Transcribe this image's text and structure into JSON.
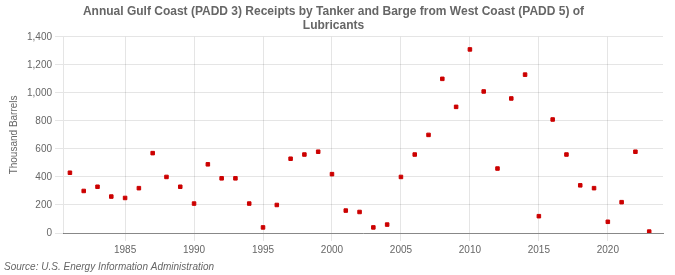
{
  "chart_data": {
    "type": "scatter",
    "title": "Annual Gulf Coast (PADD 3) Receipts by Tanker and Barge from West Coast (PADD 5) of\nLubricants",
    "y_label": "Thousand Barrels",
    "annotations": [
      "Source: U.S. Energy Information Administration"
    ],
    "x": [
      1981,
      1982,
      1983,
      1984,
      1985,
      1986,
      1987,
      1988,
      1989,
      1990,
      1991,
      1992,
      1993,
      1994,
      1995,
      1996,
      1997,
      1998,
      1999,
      2000,
      2001,
      2002,
      2003,
      2004,
      2005,
      2006,
      2007,
      2008,
      2009,
      2010,
      2011,
      2012,
      2013,
      2014,
      2015,
      2016,
      2017,
      2018,
      2019,
      2020,
      2021,
      2022,
      2023
    ],
    "values": [
      430,
      300,
      330,
      260,
      250,
      320,
      570,
      400,
      330,
      210,
      490,
      390,
      390,
      210,
      40,
      200,
      530,
      560,
      580,
      420,
      160,
      150,
      40,
      60,
      400,
      560,
      700,
      1100,
      900,
      1310,
      1010,
      460,
      960,
      1130,
      120,
      810,
      560,
      340,
      320,
      80,
      220,
      580,
      10
    ],
    "color": "#cc0000",
    "marker": "square",
    "xlim": [
      1980.5,
      2024
    ],
    "xticks": [
      1985,
      1990,
      1995,
      2000,
      2005,
      2010,
      2015,
      2020
    ],
    "ylim": [
      0,
      1400
    ],
    "yticks": [
      0,
      200,
      400,
      600,
      800,
      {
        "value": 1000,
        "label": "1,000"
      },
      {
        "value": 1200,
        "label": "1,200"
      },
      {
        "value": 1400,
        "label": "1,400"
      }
    ],
    "grid": true
  }
}
